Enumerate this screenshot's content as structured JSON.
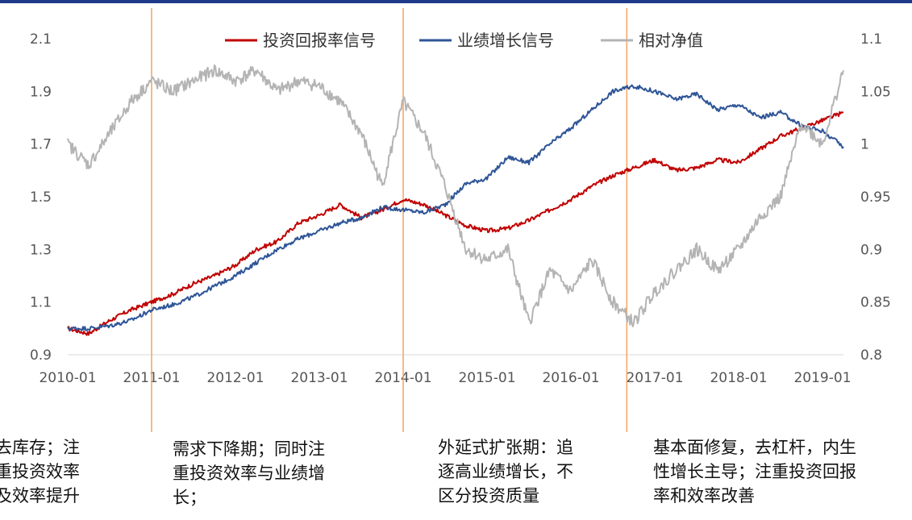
{
  "chart_data": {
    "type": "line",
    "x": [
      "2010-01",
      "2011-01",
      "2012-01",
      "2013-01",
      "2014-01",
      "2015-01",
      "2016-01",
      "2017-01",
      "2018-01",
      "2019-01"
    ],
    "x_tick_labels": [
      "2010-01",
      "2011-01",
      "2012-01",
      "2013-01",
      "2014-01",
      "2015-01",
      "2016-01",
      "2017-01",
      "2018-01",
      "2019-01"
    ],
    "y_left_ticks": [
      "2.1",
      "1.9",
      "1.7",
      "1.5",
      "1.3",
      "1.1",
      "0.9"
    ],
    "y_right_ticks": [
      "1.1",
      "1.05",
      "1",
      "0.95",
      "0.9",
      "0.85",
      "0.8"
    ],
    "ylim_left": [
      0.9,
      2.1
    ],
    "ylim_right": [
      0.8,
      1.1
    ],
    "legend_position": "top",
    "series": [
      {
        "name": "投资回报率信号",
        "axis": "left",
        "color": "#c00000",
        "points": [
          [
            "2010-01",
            1.0
          ],
          [
            "2010-04",
            0.98
          ],
          [
            "2010-07",
            1.03
          ],
          [
            "2010-10",
            1.07
          ],
          [
            "2011-01",
            1.1
          ],
          [
            "2011-04",
            1.13
          ],
          [
            "2011-07",
            1.17
          ],
          [
            "2011-10",
            1.2
          ],
          [
            "2012-01",
            1.24
          ],
          [
            "2012-04",
            1.3
          ],
          [
            "2012-07",
            1.33
          ],
          [
            "2012-10",
            1.4
          ],
          [
            "2013-01",
            1.43
          ],
          [
            "2013-04",
            1.47
          ],
          [
            "2013-07",
            1.42
          ],
          [
            "2013-10",
            1.45
          ],
          [
            "2014-01",
            1.49
          ],
          [
            "2014-04",
            1.47
          ],
          [
            "2014-07",
            1.43
          ],
          [
            "2014-10",
            1.39
          ],
          [
            "2015-01",
            1.37
          ],
          [
            "2015-04",
            1.38
          ],
          [
            "2015-07",
            1.41
          ],
          [
            "2015-10",
            1.45
          ],
          [
            "2016-01",
            1.49
          ],
          [
            "2016-04",
            1.54
          ],
          [
            "2016-07",
            1.58
          ],
          [
            "2016-10",
            1.61
          ],
          [
            "2017-01",
            1.64
          ],
          [
            "2017-04",
            1.6
          ],
          [
            "2017-07",
            1.61
          ],
          [
            "2017-10",
            1.64
          ],
          [
            "2018-01",
            1.63
          ],
          [
            "2018-04",
            1.68
          ],
          [
            "2018-07",
            1.73
          ],
          [
            "2018-10",
            1.76
          ],
          [
            "2019-01",
            1.79
          ],
          [
            "2019-04",
            1.82
          ]
        ]
      },
      {
        "name": "业绩增长信号",
        "axis": "left",
        "color": "#2e5597",
        "points": [
          [
            "2010-01",
            1.0
          ],
          [
            "2010-04",
            1.0
          ],
          [
            "2010-07",
            1.01
          ],
          [
            "2010-10",
            1.03
          ],
          [
            "2011-01",
            1.07
          ],
          [
            "2011-04",
            1.09
          ],
          [
            "2011-07",
            1.12
          ],
          [
            "2011-10",
            1.16
          ],
          [
            "2012-01",
            1.2
          ],
          [
            "2012-04",
            1.25
          ],
          [
            "2012-07",
            1.3
          ],
          [
            "2012-10",
            1.34
          ],
          [
            "2013-01",
            1.37
          ],
          [
            "2013-04",
            1.4
          ],
          [
            "2013-07",
            1.42
          ],
          [
            "2013-10",
            1.46
          ],
          [
            "2014-01",
            1.45
          ],
          [
            "2014-04",
            1.44
          ],
          [
            "2014-07",
            1.47
          ],
          [
            "2014-10",
            1.55
          ],
          [
            "2015-01",
            1.57
          ],
          [
            "2015-04",
            1.65
          ],
          [
            "2015-07",
            1.63
          ],
          [
            "2015-10",
            1.7
          ],
          [
            "2016-01",
            1.76
          ],
          [
            "2016-04",
            1.83
          ],
          [
            "2016-07",
            1.9
          ],
          [
            "2016-10",
            1.92
          ],
          [
            "2017-01",
            1.9
          ],
          [
            "2017-04",
            1.87
          ],
          [
            "2017-07",
            1.89
          ],
          [
            "2017-10",
            1.83
          ],
          [
            "2018-01",
            1.85
          ],
          [
            "2018-04",
            1.8
          ],
          [
            "2018-07",
            1.82
          ],
          [
            "2018-10",
            1.77
          ],
          [
            "2019-01",
            1.75
          ],
          [
            "2019-04",
            1.69
          ]
        ]
      },
      {
        "name": "相对净值",
        "axis": "right",
        "color": "#b4b4b4",
        "points": [
          [
            "2010-01",
            1.0
          ],
          [
            "2010-04",
            0.98
          ],
          [
            "2010-07",
            1.01
          ],
          [
            "2010-10",
            1.04
          ],
          [
            "2011-01",
            1.06
          ],
          [
            "2011-04",
            1.05
          ],
          [
            "2011-07",
            1.06
          ],
          [
            "2011-10",
            1.07
          ],
          [
            "2012-01",
            1.06
          ],
          [
            "2012-04",
            1.07
          ],
          [
            "2012-07",
            1.05
          ],
          [
            "2012-10",
            1.06
          ],
          [
            "2013-01",
            1.055
          ],
          [
            "2013-04",
            1.04
          ],
          [
            "2013-07",
            1.01
          ],
          [
            "2013-10",
            0.96
          ],
          [
            "2014-01",
            1.04
          ],
          [
            "2014-04",
            1.01
          ],
          [
            "2014-07",
            0.96
          ],
          [
            "2014-10",
            0.9
          ],
          [
            "2015-01",
            0.89
          ],
          [
            "2015-04",
            0.9
          ],
          [
            "2015-07",
            0.83
          ],
          [
            "2015-10",
            0.88
          ],
          [
            "2016-01",
            0.86
          ],
          [
            "2016-04",
            0.89
          ],
          [
            "2016-07",
            0.85
          ],
          [
            "2016-10",
            0.83
          ],
          [
            "2017-01",
            0.86
          ],
          [
            "2017-04",
            0.88
          ],
          [
            "2017-07",
            0.9
          ],
          [
            "2017-10",
            0.88
          ],
          [
            "2018-01",
            0.9
          ],
          [
            "2018-04",
            0.93
          ],
          [
            "2018-07",
            0.95
          ],
          [
            "2018-10",
            1.02
          ],
          [
            "2019-01",
            1.0
          ],
          [
            "2019-04",
            1.07
          ]
        ]
      }
    ],
    "period_dividers": [
      "2011-01",
      "2014-01",
      "2016-09"
    ],
    "divider_color": "#f4a460",
    "annotations": [
      "去库存；注\n重投资效率\n及效率提升",
      "需求下降期；同时注\n重投资效率与业绩增\n长；",
      "外延式扩张期：追\n逐高业绩增长，不\n区分投资质量",
      "基本面修复，去杠杆，内生\n性增长主导；注重投资回报\n率和效率改善"
    ]
  }
}
